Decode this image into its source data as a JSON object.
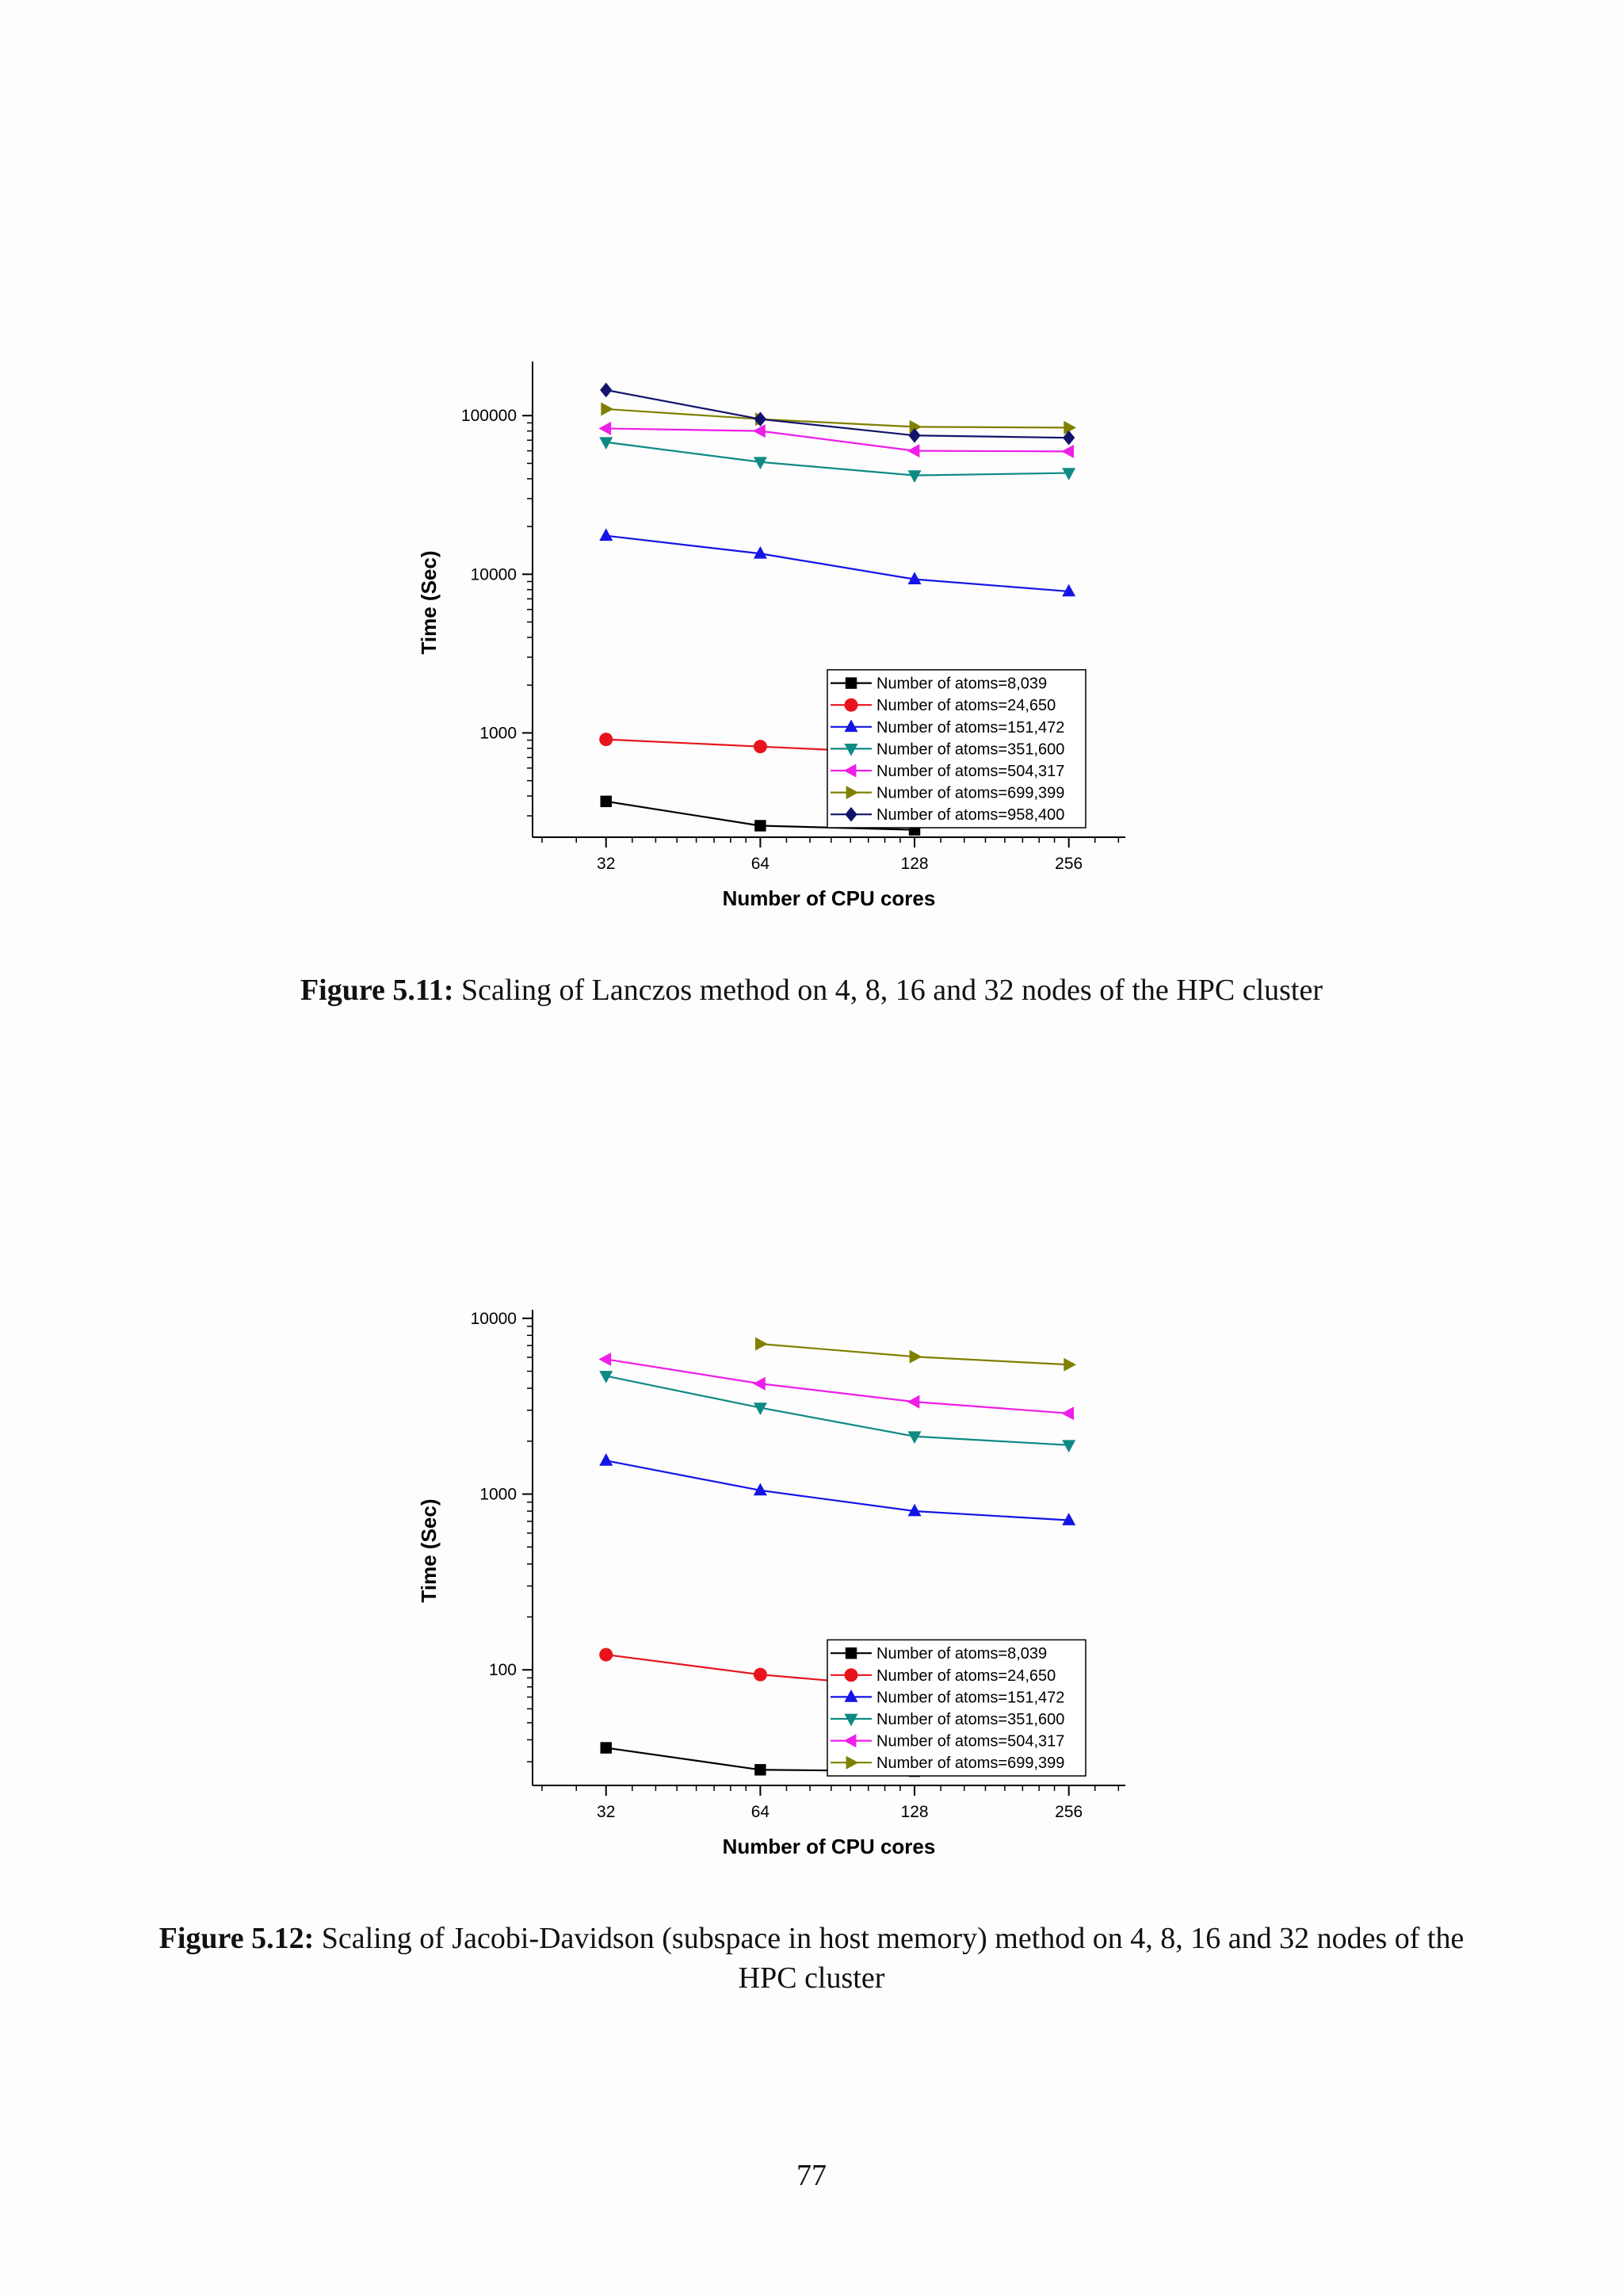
{
  "colors": {
    "Number of atoms=8,039": "#000000",
    "Number of atoms=24,650": "#e8141c",
    "Number of atoms=151,472": "#1414e6",
    "Number of atoms=351,600": "#0e8a84",
    "Number of atoms=504,317": "#ee1ee8",
    "Number of atoms=699,399": "#808000",
    "Number of atoms=958,400": "#13136b"
  },
  "markers": {
    "Number of atoms=8,039": "square",
    "Number of atoms=24,650": "circle",
    "Number of atoms=151,472": "triangle-up",
    "Number of atoms=351,600": "triangle-down",
    "Number of atoms=504,317": "triangle-left",
    "Number of atoms=699,399": "triangle-right",
    "Number of atoms=958,400": "diamond"
  },
  "chart_data": [
    {
      "type": "line",
      "xlabel": "Number of CPU cores",
      "ylabel": "Time (Sec)",
      "xscale": "log2",
      "yscale": "log10",
      "xlim": [
        23,
        330
      ],
      "ylim": [
        220,
        200000
      ],
      "xticks": [
        32,
        64,
        128,
        256
      ],
      "yticks": [
        1000,
        10000,
        100000
      ],
      "legend_position": "bottom-right",
      "series": [
        {
          "name": "Number of atoms=8,039",
          "x": [
            32,
            64,
            128
          ],
          "y": [
            370,
            260,
            245
          ]
        },
        {
          "name": "Number of atoms=24,650",
          "x": [
            32,
            64,
            128
          ],
          "y": [
            910,
            820,
            740
          ]
        },
        {
          "name": "Number of atoms=151,472",
          "x": [
            32,
            64,
            128,
            256
          ],
          "y": [
            17500,
            13500,
            9300,
            7800
          ]
        },
        {
          "name": "Number of atoms=351,600",
          "x": [
            32,
            64,
            128,
            256
          ],
          "y": [
            68000,
            51000,
            42000,
            43500
          ]
        },
        {
          "name": "Number of atoms=504,317",
          "x": [
            32,
            64,
            128,
            256
          ],
          "y": [
            83000,
            80000,
            60000,
            59500
          ]
        },
        {
          "name": "Number of atoms=699,399",
          "x": [
            32,
            64,
            128,
            256
          ],
          "y": [
            110000,
            95000,
            85000,
            84000
          ]
        },
        {
          "name": "Number of atoms=958,400",
          "x": [
            32,
            64,
            128,
            256
          ],
          "y": [
            145000,
            95000,
            75000,
            72500
          ]
        }
      ]
    },
    {
      "type": "line",
      "xlabel": "Number of CPU cores",
      "ylabel": "Time (Sec)",
      "xscale": "log2",
      "yscale": "log10",
      "xlim": [
        23,
        330
      ],
      "ylim": [
        22,
        10300
      ],
      "xticks": [
        32,
        64,
        128,
        256
      ],
      "yticks": [
        100,
        1000,
        10000
      ],
      "legend_position": "bottom-right",
      "series": [
        {
          "name": "Number of atoms=8,039",
          "x": [
            32,
            64,
            128
          ],
          "y": [
            36,
            27,
            26.5
          ]
        },
        {
          "name": "Number of atoms=24,650",
          "x": [
            32,
            64,
            128
          ],
          "y": [
            122,
            94,
            79
          ]
        },
        {
          "name": "Number of atoms=151,472",
          "x": [
            32,
            64,
            128,
            256
          ],
          "y": [
            1550,
            1050,
            800,
            710
          ]
        },
        {
          "name": "Number of atoms=351,600",
          "x": [
            32,
            64,
            128,
            256
          ],
          "y": [
            4700,
            3100,
            2130,
            1900
          ]
        },
        {
          "name": "Number of atoms=504,317",
          "x": [
            32,
            64,
            128,
            256
          ],
          "y": [
            5850,
            4250,
            3350,
            2880
          ]
        },
        {
          "name": "Number of atoms=699,399",
          "x": [
            64,
            128,
            256
          ],
          "y": [
            7150,
            6050,
            5450
          ]
        }
      ]
    }
  ],
  "captions": [
    {
      "label": "Figure 5.11:",
      "text": "Scaling of Lanczos method on 4, 8, 16 and 32 nodes of the HPC cluster"
    },
    {
      "label": "Figure 5.12:",
      "text": "Scaling of Jacobi-Davidson (subspace in host memory) method on 4, 8, 16 and 32 nodes of the HPC cluster"
    }
  ],
  "page_number": "77"
}
